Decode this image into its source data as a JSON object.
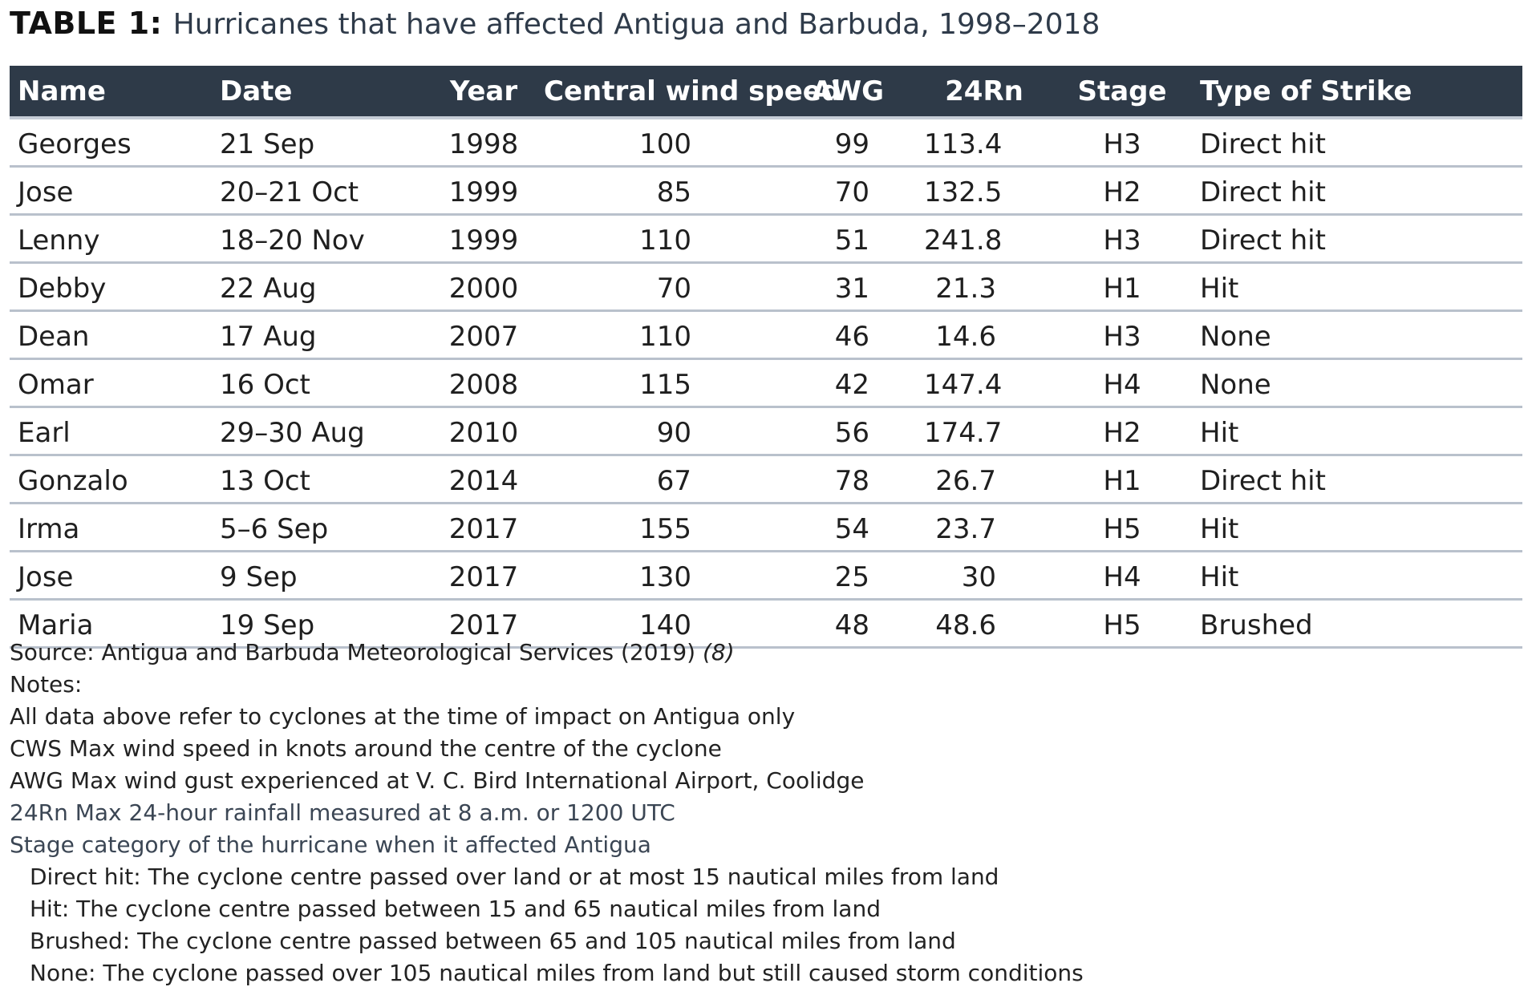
{
  "title": {
    "label": "TABLE 1:",
    "text": "Hurricanes that have affected Antigua and Barbuda, 1998–2018"
  },
  "table": {
    "columns": [
      "Name",
      "Date",
      "Year",
      "Central wind speed",
      "AWG",
      "24Rn",
      "Stage",
      "Type of Strike"
    ],
    "rows": [
      [
        "Georges",
        "21 Sep",
        "1998",
        "100",
        "99",
        "113.4",
        "H3",
        "Direct hit"
      ],
      [
        "Jose",
        "20–21 Oct",
        "1999",
        "85",
        "70",
        "132.5",
        "H2",
        "Direct hit"
      ],
      [
        "Lenny",
        "18–20 Nov",
        "1999",
        "110",
        "51",
        "241.8",
        "H3",
        "Direct hit"
      ],
      [
        "Debby",
        "22 Aug",
        "2000",
        "70",
        "31",
        "21.3",
        "H1",
        "Hit"
      ],
      [
        "Dean",
        "17 Aug",
        "2007",
        "110",
        "46",
        "14.6",
        "H3",
        "None"
      ],
      [
        "Omar",
        "16 Oct",
        "2008",
        "115",
        "42",
        "147.4",
        "H4",
        "None"
      ],
      [
        "Earl",
        "29–30 Aug",
        "2010",
        "90",
        "56",
        "174.7",
        "H2",
        "Hit"
      ],
      [
        "Gonzalo",
        "13 Oct",
        "2014",
        "67",
        "78",
        "26.7",
        "H1",
        "Direct hit"
      ],
      [
        "Irma",
        "5–6 Sep",
        "2017",
        "155",
        "54",
        "23.7",
        "H5",
        "Hit"
      ],
      [
        "Jose",
        "9 Sep",
        "2017",
        "130",
        "25",
        "30",
        "H4",
        "Hit"
      ],
      [
        "Maria",
        "19 Sep",
        "2017",
        "140",
        "48",
        "48.6",
        "H5",
        "Brushed"
      ]
    ]
  },
  "notes": {
    "source": "Source: Antigua and Barbuda Meteorological Services (2019)",
    "source_ref": "(8)",
    "heading": "Notes:",
    "lines": [
      "All data above refer to cyclones at the time of impact on Antigua only",
      "CWS Max wind speed in knots around the centre of the cyclone",
      "AWG Max wind gust experienced at V. C. Bird International Airport, Coolidge",
      "24Rn Max 24-hour rainfall measured at 8 a.m. or 1200 UTC",
      "Stage category of the hurricane when it affected Antigua"
    ],
    "strike_definitions": [
      "Direct hit: The cyclone centre passed over land or at most 15 nautical miles from land",
      "Hit: The cyclone centre passed between 15 and 65 nautical miles from land",
      "Brushed: The cyclone centre passed between 65 and 105 nautical miles from land",
      "None: The cyclone passed over 105 nautical miles from land but still caused storm conditions"
    ]
  }
}
